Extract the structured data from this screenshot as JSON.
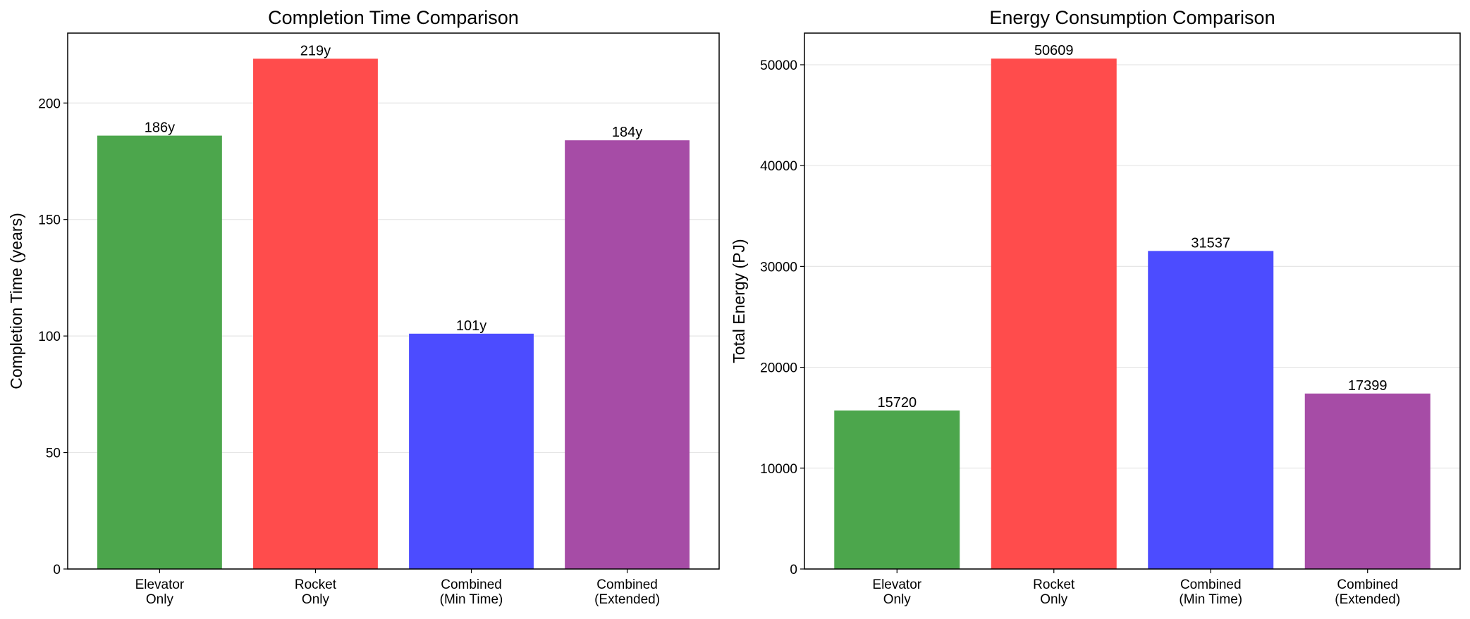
{
  "chart_data": [
    {
      "type": "bar",
      "title": "Completion Time Comparison",
      "ylabel": "Completion Time (years)",
      "categories": [
        "Elevator\nOnly",
        "Rocket\nOnly",
        "Combined\n(Min Time)",
        "Combined\n(Extended)"
      ],
      "values": [
        186,
        219,
        101,
        184
      ],
      "value_labels": [
        "186y",
        "219y",
        "101y",
        "184y"
      ],
      "colors": [
        "#4ca64c",
        "#ff4c4c",
        "#4c4cff",
        "#a64ca6"
      ],
      "ylim": [
        0,
        230
      ],
      "yticks": [
        0,
        50,
        100,
        150,
        200
      ],
      "grid": true
    },
    {
      "type": "bar",
      "title": "Energy Consumption Comparison",
      "ylabel": "Total Energy (PJ)",
      "categories": [
        "Elevator\nOnly",
        "Rocket\nOnly",
        "Combined\n(Min Time)",
        "Combined\n(Extended)"
      ],
      "values": [
        15720,
        50609,
        31537,
        17399
      ],
      "colors": [
        "#4ca64c",
        "#ff4c4c",
        "#4c4cff",
        "#a64ca6"
      ],
      "ylim": [
        0,
        53140
      ],
      "yticks": [
        0,
        10000,
        20000,
        30000,
        40000,
        50000
      ],
      "grid": true
    }
  ]
}
